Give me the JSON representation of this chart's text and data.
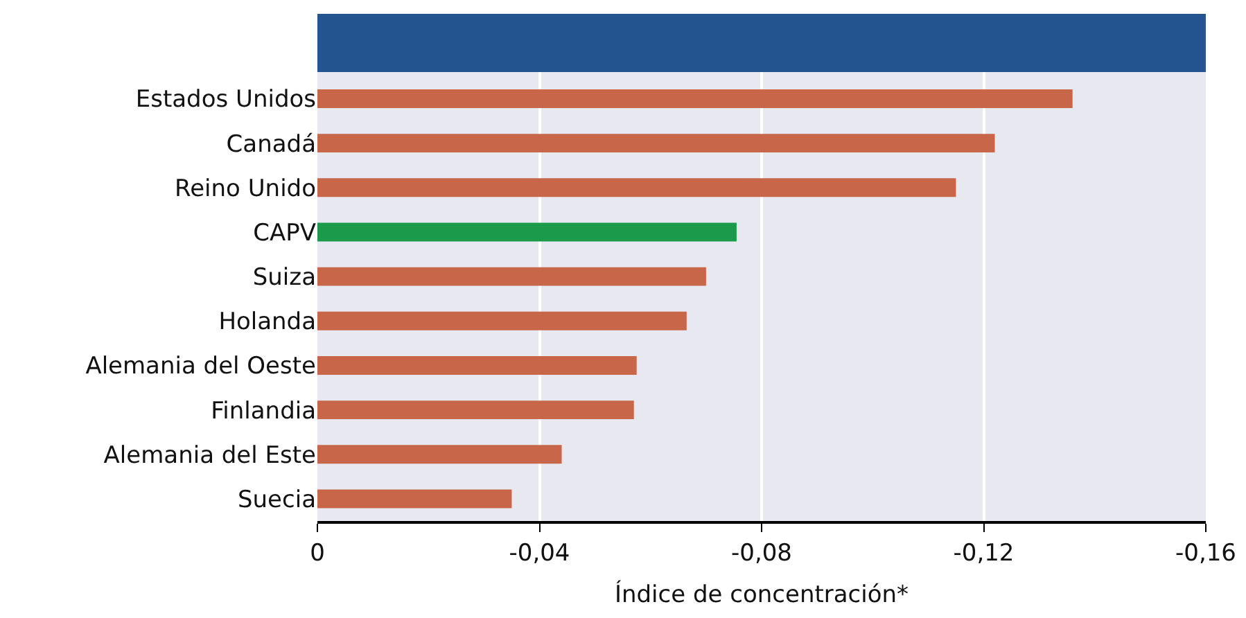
{
  "chart_data": {
    "type": "bar",
    "orientation": "horizontal",
    "xlabel": "Índice de concentración*",
    "categories": [
      "Estados Unidos",
      "Canadá",
      "Reino Unido",
      "CAPV",
      "Suiza",
      "Holanda",
      "Alemania del Oeste",
      "Finlandia",
      "Alemania del Este",
      "Suecia"
    ],
    "values": [
      -0.136,
      -0.122,
      -0.115,
      -0.0755,
      -0.07,
      -0.0665,
      -0.0575,
      -0.057,
      -0.044,
      -0.035
    ],
    "colors": [
      "#c8664a",
      "#c8664a",
      "#c8664a",
      "#1a9a4a",
      "#c8664a",
      "#c8664a",
      "#c8664a",
      "#c8664a",
      "#c8664a",
      "#c8664a"
    ],
    "xlim": [
      0,
      -0.16
    ],
    "xticks": [
      0,
      {
        "value": -0.04,
        "label": "-0,04"
      },
      {
        "value": -0.08,
        "label": "-0,08"
      },
      {
        "value": -0.12,
        "label": "-0,12"
      },
      {
        "value": -0.16,
        "label": "-0,16"
      }
    ],
    "grid": "x"
  }
}
